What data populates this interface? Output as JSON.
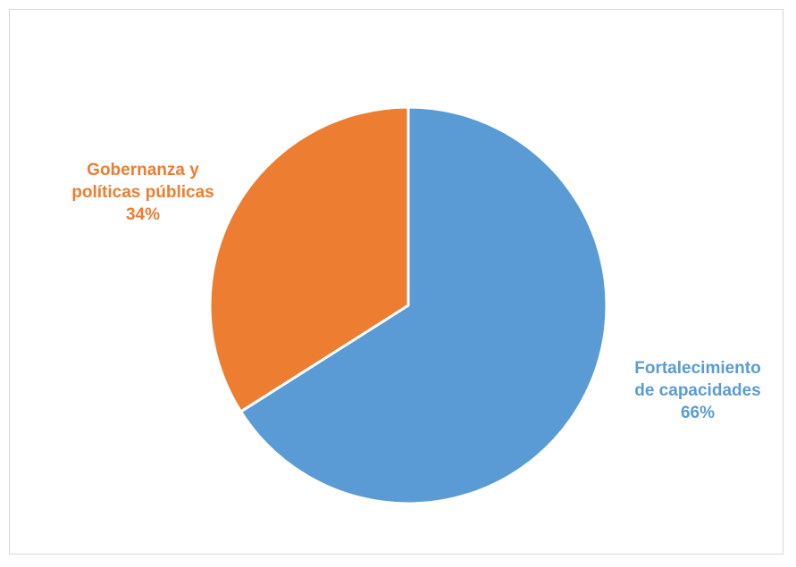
{
  "chart_data": {
    "type": "pie",
    "slices": [
      {
        "label_lines": [
          "Fortalecimiento",
          "de capacidades"
        ],
        "percent_label": "66%",
        "value": 66,
        "color": "#5b9bd5"
      },
      {
        "label_lines": [
          "Gobernanza y",
          "políticas públicas"
        ],
        "percent_label": "34%",
        "value": 34,
        "color": "#ed7d31"
      }
    ],
    "start_angle_deg": 0,
    "direction": "clockwise",
    "legend": "none"
  }
}
